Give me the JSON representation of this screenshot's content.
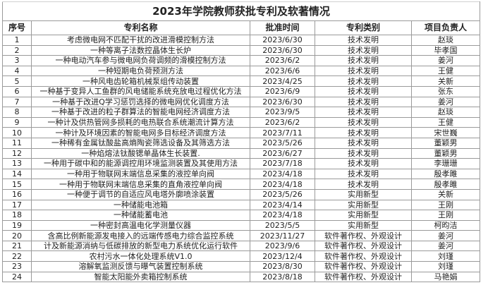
{
  "title": "2023年学院教师获批专利及软著情况",
  "headers": [
    "序号",
    "专利名称",
    "批准时间",
    "专利类别",
    "项目负责人"
  ],
  "rows": [
    [
      "1",
      "考虑微电网不匹配干扰的改进滑模控制方法",
      "2023/6/30",
      "技术发明",
      "赵琰"
    ],
    [
      "2",
      "一种等离子法数控晶体生长炉",
      "2023/6/30",
      "技术发明",
      "毕孝国"
    ],
    [
      "3",
      "一种电动汽车参与微电网负荷调频的滑模控制方法",
      "2023/6/2",
      "技术发明",
      "姜河"
    ],
    [
      "4",
      "一种短期电负荷预测方法",
      "2023/6/6",
      "技术发明",
      "王健"
    ],
    [
      "5",
      "一种风电齿轮箱机械泵组传动装置",
      "2023/4/25",
      "技术发明",
      "关新"
    ],
    [
      "6",
      "一种基于变异人工鱼群的风电储能系统充放电过程优化方法",
      "2023/6/9",
      "技术发明",
      "张东"
    ],
    [
      "7",
      "一种基于改进Q学习惩罚选择的微电网优化调度方法",
      "2023/6/30",
      "技术发明",
      "姜河"
    ],
    [
      "8",
      "一种基于改进的粒子群算法的智能电网经济调度方法",
      "2023/9/5",
      "技术发明",
      "赵琰"
    ],
    [
      "9",
      "一种计及供热管网多损耗的电热联合系统潮流计算方法",
      "2023/6/2",
      "技术发明",
      "王健"
    ],
    [
      "10",
      "一种计及环境因素的智能电网多目标经济调度方法",
      "2023/7/11",
      "技术发明",
      "宋世巍"
    ],
    [
      "11",
      "一种稀有金属钛酸盐高熵陶瓷筛选设备及其筛选方法",
      "2023/5/26",
      "技术发明",
      "董颖男"
    ],
    [
      "12",
      "一种焰熔法钛酸锶单晶体生长装置.",
      "2023/6/27",
      "技术发明",
      "董颖男"
    ],
    [
      "13",
      "一种用于碳中和的能源调控用环境监测装置及其使用方法",
      "2023/7/18",
      "技术发明",
      "李珊珊"
    ],
    [
      "14",
      "一种用于物联网末端信息采集的液控单向阀",
      "2023/4/18",
      "技术发明",
      "殷孝雎"
    ],
    [
      "15",
      "一种用于物联网末端信息采集的直角液控单向阀",
      "2023/4/18",
      "技术发明",
      "殷孝雎"
    ],
    [
      "16",
      "一种便于调节的自适应风电塔外廓喷涂装置",
      "2023/5/26",
      "实用新型",
      "关新"
    ],
    [
      "17",
      "一种储能电池箱",
      "2023/4/14",
      "实用新型",
      "王刚"
    ],
    [
      "18",
      "一种储能蓄电池",
      "2023/4/18",
      "实用新型",
      "王刚"
    ],
    [
      "19",
      "一种密封高温电化学测量仪器",
      "2023/5/5",
      "实用新型",
      "柯昀洁"
    ],
    [
      "20",
      "含高比例新能源发电接入的远端传感电力综合监控系统",
      "2023/11/27",
      "软件著作权、外观设计",
      "姜河"
    ],
    [
      "21",
      "计及新能源消纳与低碳排放的新型电力系统优化运行软件",
      "2023/9/6",
      "软件著作权、外观设计",
      "姜河"
    ],
    [
      "22",
      "农村污水一体化处理系统V1.0",
      "2023/12/4",
      "软件著作权、外观设计",
      "刘瑾"
    ],
    [
      "23",
      "溶解氧监测反馈与曝气装置控制系统",
      "2023/8/30",
      "软件著作权、外观设计",
      "刘瑾"
    ],
    [
      "24",
      "智能太阳能外卖箱控制系统",
      "2023/8/18",
      "软件著作权、外观设计",
      "马艳娟"
    ]
  ]
}
